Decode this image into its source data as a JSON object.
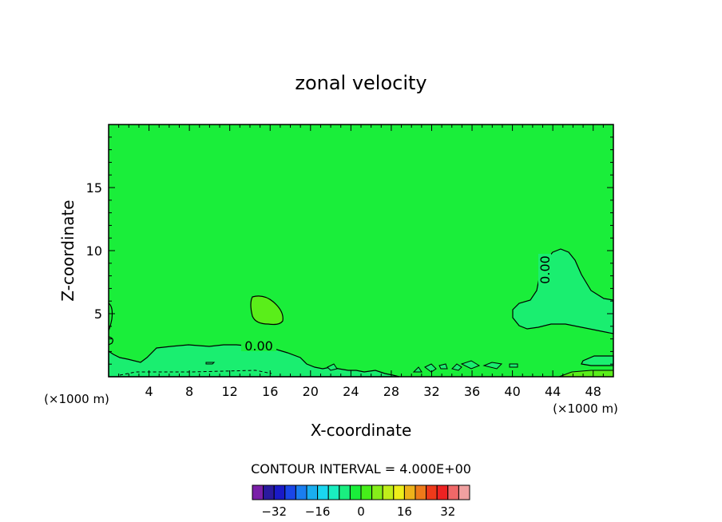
{
  "chart_data": {
    "type": "heatmap",
    "title": "zonal velocity",
    "xlabel": "X-coordinate",
    "ylabel": "Z-coordinate",
    "x_unit_left": "(×1000 m)",
    "x_unit_right": "(×1000 m)",
    "xlim": [
      0,
      50
    ],
    "ylim": [
      0,
      20
    ],
    "x_ticks": [
      4,
      8,
      12,
      16,
      20,
      24,
      28,
      32,
      36,
      40,
      44,
      48
    ],
    "y_ticks": [
      5,
      10,
      15
    ],
    "contour_interval_text": "CONTOUR INTERVAL = 4.000E+00",
    "contour_label": "0.00",
    "colorbar": {
      "colors": [
        "#7a1fa8",
        "#2a1a9e",
        "#1a1ac8",
        "#1a46e8",
        "#1a7ef0",
        "#1aaef0",
        "#1ad6f0",
        "#1aeec0",
        "#1aee80",
        "#1aee3a",
        "#46ee1a",
        "#86ee1a",
        "#c0ee1a",
        "#eeee1a",
        "#eeb21a",
        "#ee7a1a",
        "#ee3a1a",
        "#ee2222",
        "#f06868",
        "#f0a0a0"
      ],
      "tick_labels": [
        "−32",
        "−16",
        "0",
        "16",
        "32"
      ],
      "tick_values": [
        -32,
        -16,
        0,
        16,
        32
      ],
      "range": [
        -40,
        40
      ]
    },
    "background_color": "#1aee3a",
    "regions": [
      {
        "name": "positive-blob",
        "color": "#5aee1a"
      },
      {
        "name": "negative-near-surface-west",
        "color": "#1aee70"
      },
      {
        "name": "negative-east",
        "color": "#1aee70"
      }
    ]
  }
}
